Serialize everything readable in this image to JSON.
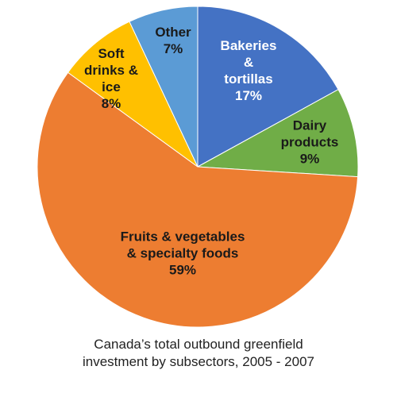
{
  "chart_data": {
    "type": "pie",
    "title_lines": [
      "Canada’s total outbound greenfield",
      "investment by subsectors, 2005 - 2007"
    ],
    "slices": [
      {
        "label_lines": [
          "Bakeries",
          "&",
          "tortillas"
        ],
        "value": 17,
        "value_label": "17%",
        "color": "#4472C4",
        "text_color": "#ffffff"
      },
      {
        "label_lines": [
          "Dairy",
          "products"
        ],
        "value": 9,
        "value_label": "9%",
        "color": "#70AD47",
        "text_color": "#1a1a1a"
      },
      {
        "label_lines": [
          "Fruits & vegetables",
          "& specialty foods"
        ],
        "value": 59,
        "value_label": "59%",
        "color": "#ED7D31",
        "text_color": "#1a1a1a"
      },
      {
        "label_lines": [
          "Soft",
          "drinks &",
          "ice"
        ],
        "value": 8,
        "value_label": "8%",
        "color": "#FFC000",
        "text_color": "#1a1a1a"
      },
      {
        "label_lines": [
          "Other"
        ],
        "value": 7,
        "value_label": "7%",
        "color": "#5B9BD5",
        "text_color": "#1a1a1a"
      }
    ]
  }
}
